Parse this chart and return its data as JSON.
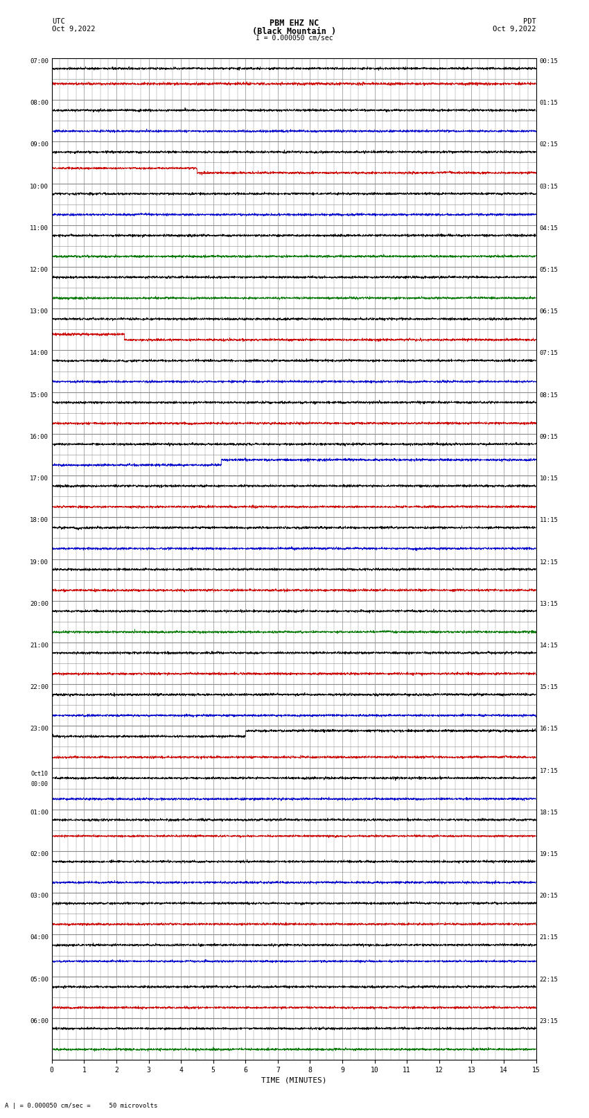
{
  "title_line1": "PBM EHZ NC",
  "title_line2": "(Black Mountain )",
  "scale_label": "I = 0.000050 cm/sec",
  "utc_label": "UTC",
  "utc_date": "Oct 9,2022",
  "pdt_label": "PDT",
  "pdt_date": "Oct 9,2022",
  "xlabel": "TIME (MINUTES)",
  "footer": "A | = 0.000050 cm/sec =     50 microvolts",
  "background_color": "#ffffff",
  "grid_color": "#888888",
  "trace_color_black": "#000000",
  "trace_color_red": "#cc0000",
  "trace_color_blue": "#0000cc",
  "trace_color_green": "#007700",
  "num_rows": 48,
  "minutes_per_row": 15,
  "left_labels": [
    "07:00",
    "",
    "08:00",
    "",
    "09:00",
    "",
    "10:00",
    "",
    "11:00",
    "",
    "12:00",
    "",
    "13:00",
    "",
    "14:00",
    "",
    "15:00",
    "",
    "16:00",
    "",
    "17:00",
    "",
    "18:00",
    "",
    "19:00",
    "",
    "20:00",
    "",
    "21:00",
    "",
    "22:00",
    "",
    "23:00",
    "",
    "Oct10\n00:00",
    "",
    "01:00",
    "",
    "02:00",
    "",
    "03:00",
    "",
    "04:00",
    "",
    "05:00",
    "",
    "06:00",
    ""
  ],
  "right_labels": [
    "00:15",
    "",
    "01:15",
    "",
    "02:15",
    "",
    "03:15",
    "",
    "04:15",
    "",
    "05:15",
    "",
    "06:15",
    "",
    "07:15",
    "",
    "08:15",
    "",
    "09:15",
    "",
    "10:15",
    "",
    "11:15",
    "",
    "12:15",
    "",
    "13:15",
    "",
    "14:15",
    "",
    "15:15",
    "",
    "16:15",
    "",
    "17:15",
    "",
    "18:15",
    "",
    "19:15",
    "",
    "20:15",
    "",
    "21:15",
    "",
    "22:15",
    "",
    "23:15",
    ""
  ],
  "xticks": [
    0,
    1,
    2,
    3,
    4,
    5,
    6,
    7,
    8,
    9,
    10,
    11,
    12,
    13,
    14,
    15
  ],
  "noise_seed": 42,
  "trace_amplitude": 0.06
}
